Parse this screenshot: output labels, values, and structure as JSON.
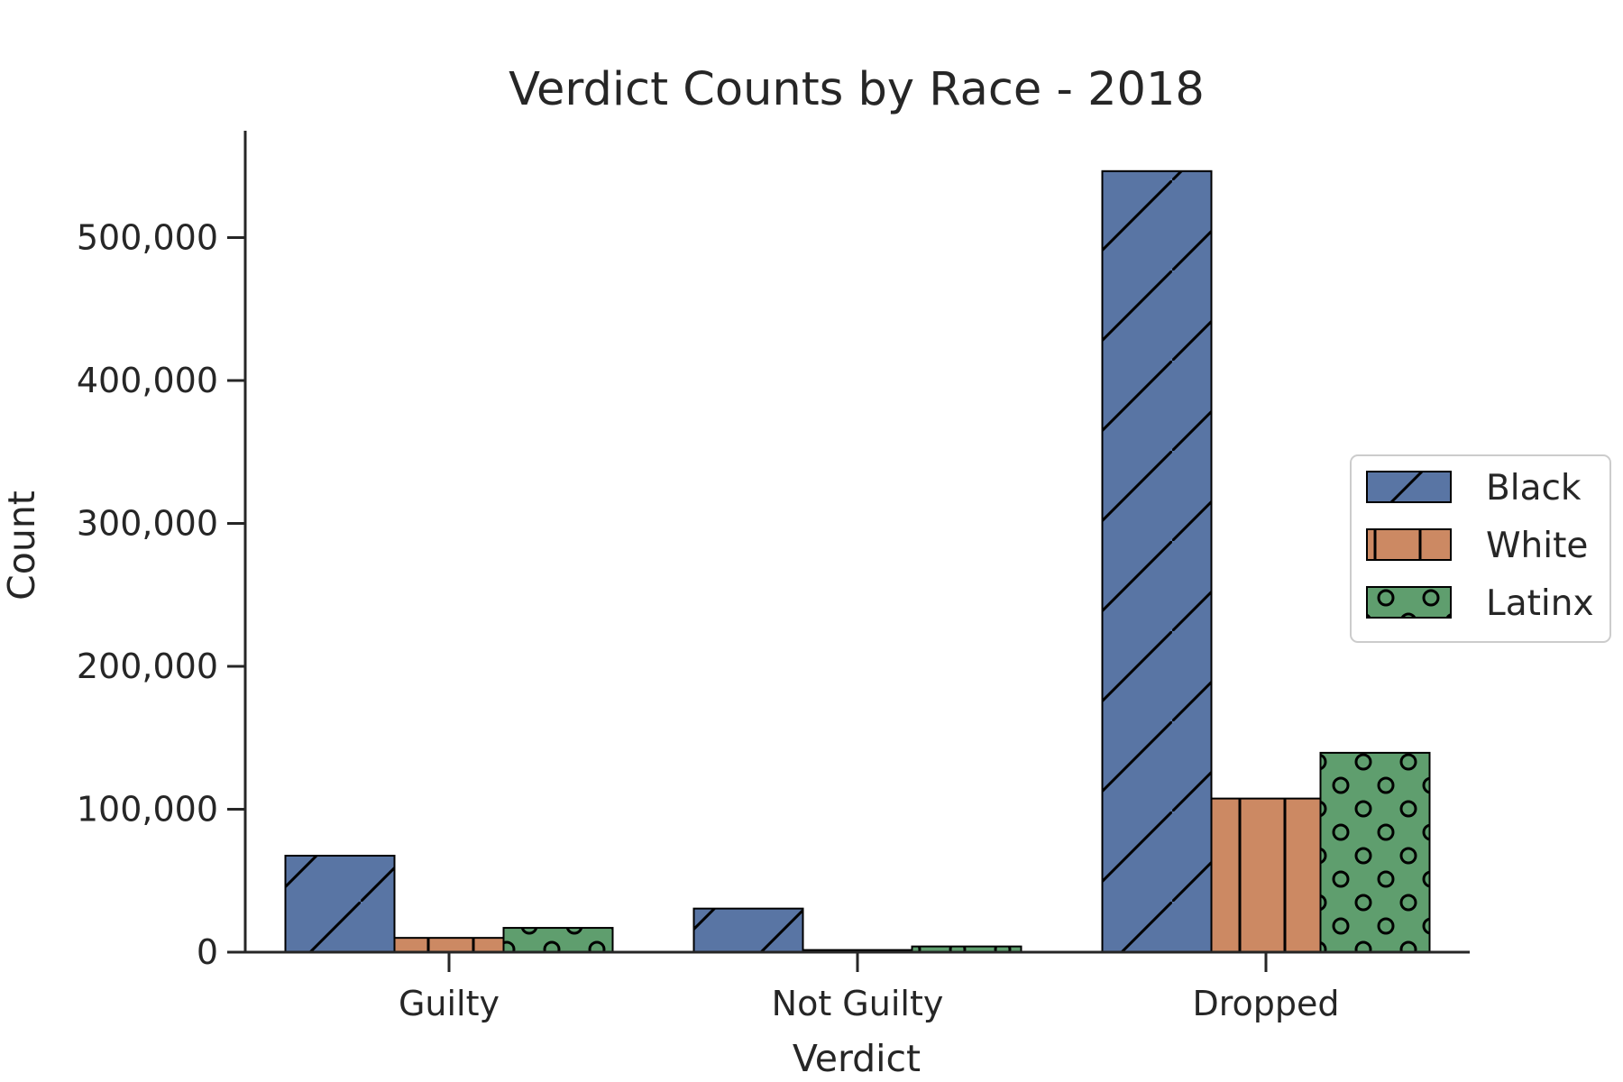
{
  "chart_data": {
    "type": "bar",
    "title": "Verdict Counts by Race - 2018",
    "xlabel": "Verdict",
    "ylabel": "Count",
    "categories": [
      "Guilty",
      "Not Guilty",
      "Dropped"
    ],
    "series": [
      {
        "name": "Black",
        "values": [
          67500,
          30500,
          546500
        ],
        "color": "#5975a4",
        "pattern": "diagonal-hatch"
      },
      {
        "name": "White",
        "values": [
          10000,
          1500,
          107500
        ],
        "color": "#cc8963",
        "pattern": "vertical-hatch"
      },
      {
        "name": "Latinx",
        "values": [
          17000,
          4000,
          139500
        ],
        "color": "#5f9e6e",
        "pattern": "circle-hatch"
      }
    ],
    "ylim": [
      0,
      575000
    ],
    "yticks": [
      0,
      100000,
      200000,
      300000,
      400000,
      500000
    ],
    "ytick_labels": [
      "0",
      "100,000",
      "200,000",
      "300,000",
      "400,000",
      "500,000"
    ],
    "grid": false,
    "legend_position": "center-right"
  }
}
